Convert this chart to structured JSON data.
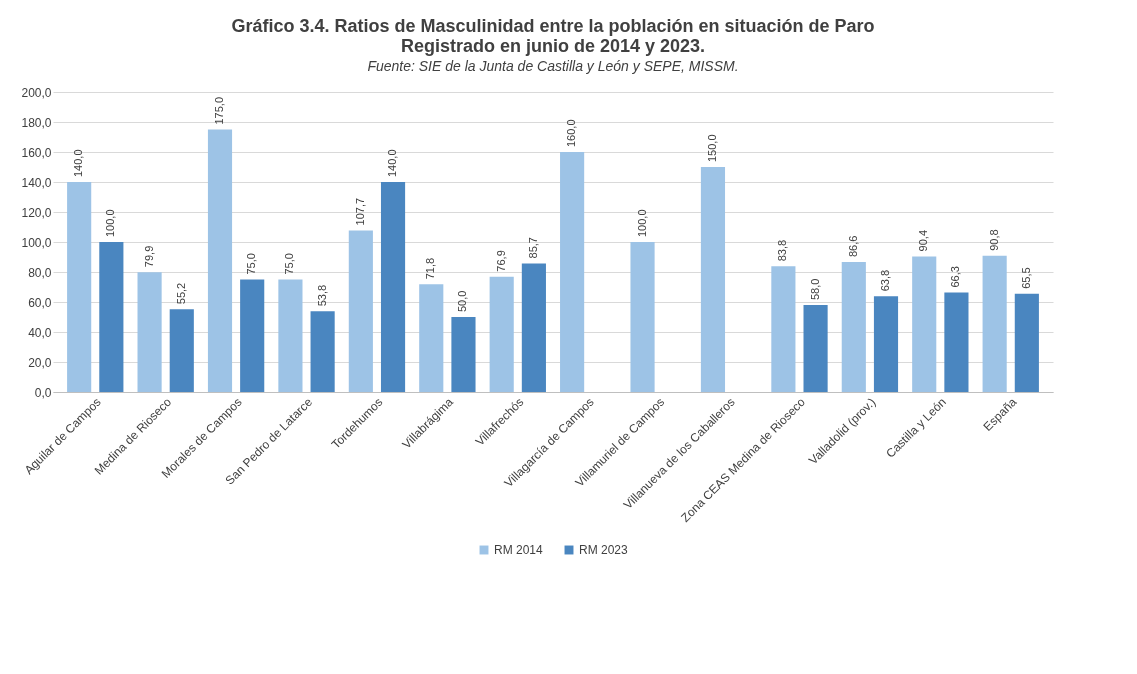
{
  "chart_data": {
    "type": "bar",
    "title": "Gráfico 3.4. Ratios de Masculinidad entre la población en situación de Paro Registrado en junio de 2014 y 2023.",
    "subtitle": "Fuente: SIE de la Junta de Castilla y León y SEPE, MISSM.",
    "categories": [
      "Aguilar de Campos",
      "Medina de Rioseco",
      "Morales de Campos",
      "San Pedro de Latarce",
      "Tordehumos",
      "Villabrágima",
      "Villafrechós",
      "Villagarcía de Campos",
      "Villamuriel de Campos",
      "Villanueva de los Caballeros",
      "Zona CEAS Medina de Rioseco",
      "Valladolid (prov.)",
      "Castilla y León",
      "España"
    ],
    "series": [
      {
        "name": "RM 2014",
        "color": "#9dc3e6",
        "values": [
          140,
          79.9,
          175,
          75,
          107.7,
          71.8,
          76.9,
          160,
          100,
          150,
          83.8,
          86.6,
          90.4,
          90.8
        ],
        "value_labels": [
          "140,0",
          "79,9",
          "175,0",
          "75,0",
          "107,7",
          "71,8",
          "76,9",
          "160,0",
          "100,0",
          "150,0",
          "83,8",
          "86,6",
          "90,4",
          "90,8"
        ]
      },
      {
        "name": "RM 2023",
        "color": "#4a86c0",
        "values": [
          100,
          55.2,
          75,
          53.8,
          140,
          50,
          85.7,
          null,
          null,
          null,
          58,
          63.8,
          66.3,
          65.5
        ],
        "value_labels": [
          "100,0",
          "55,2",
          "75,0",
          "53,8",
          "140,0",
          "50,0",
          "85,7",
          null,
          null,
          null,
          "58,0",
          "63,8",
          "66,3",
          "65,5"
        ]
      }
    ],
    "ylim": [
      0,
      200
    ],
    "yticks": [
      {
        "value": 0,
        "label": "0,0"
      },
      {
        "value": 20,
        "label": "20,0"
      },
      {
        "value": 40,
        "label": "40,0"
      },
      {
        "value": 60,
        "label": "60,0"
      },
      {
        "value": 80,
        "label": "80,0"
      },
      {
        "value": 100,
        "label": "100,0"
      },
      {
        "value": 120,
        "label": "120,0"
      },
      {
        "value": 140,
        "label": "140,0"
      },
      {
        "value": 160,
        "label": "160,0"
      },
      {
        "value": 180,
        "label": "180,0"
      },
      {
        "value": 200,
        "label": "200,0"
      }
    ],
    "grid": "y",
    "legend": "bottom"
  }
}
